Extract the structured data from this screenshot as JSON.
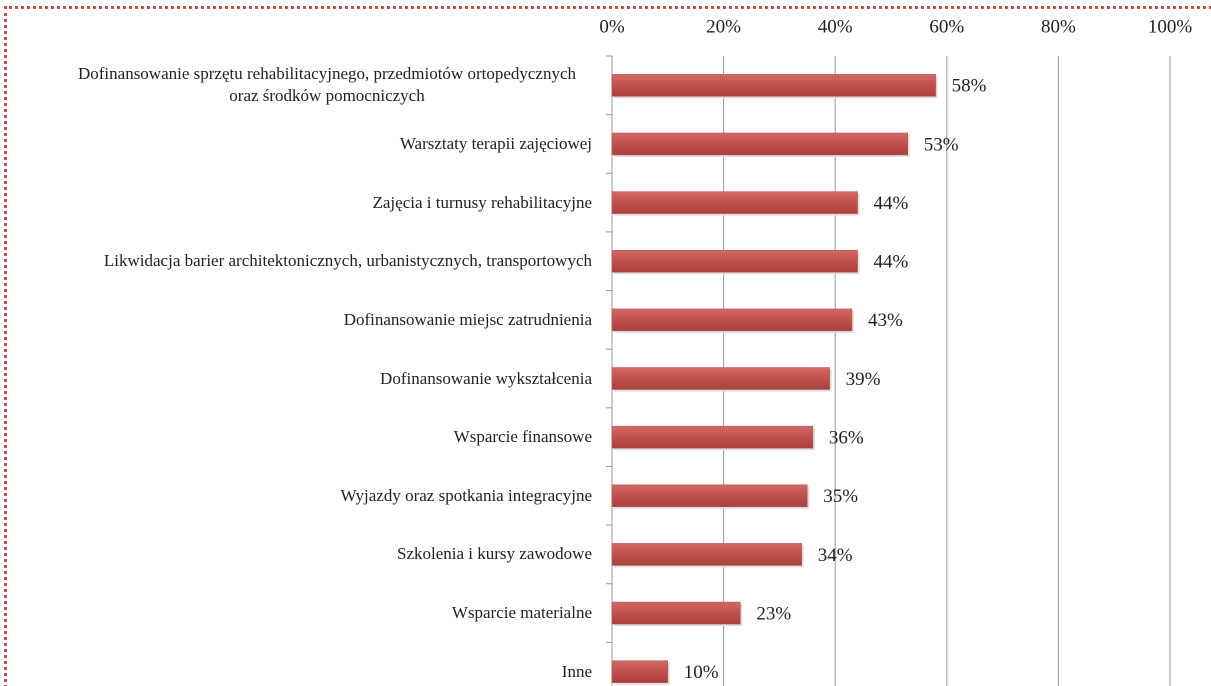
{
  "chart_data": {
    "type": "bar",
    "orientation": "horizontal",
    "categories": [
      "Dofinansowanie sprzętu rehabilitacyjnego, przedmiotów ortopedycznych oraz środków pomocniczych",
      "Warsztaty terapii zajęciowej",
      "Zajęcia i turnusy rehabilitacyjne",
      "Likwidacja barier architektonicznych, urbanistycznych, transportowych",
      "Dofinansowanie miejsc zatrudnienia",
      "Dofinansowanie wykształcenia",
      "Wsparcie finansowe",
      "Wyjazdy oraz spotkania integracyjne",
      "Szkolenia i kursy zawodowe",
      "Wsparcie materialne",
      "Inne"
    ],
    "values": [
      58,
      53,
      44,
      44,
      43,
      39,
      36,
      35,
      34,
      23,
      10
    ],
    "value_labels": [
      "58%",
      "53%",
      "44%",
      "44%",
      "43%",
      "39%",
      "36%",
      "35%",
      "34%",
      "23%",
      "10%"
    ],
    "color": "#c0504d",
    "xlim": [
      0,
      100
    ],
    "xticks": [
      {
        "value": 0,
        "label": "0%"
      },
      {
        "value": 20,
        "label": "20%"
      },
      {
        "value": 40,
        "label": "40%"
      },
      {
        "value": 60,
        "label": "60%"
      },
      {
        "value": 80,
        "label": "80%"
      },
      {
        "value": 100,
        "label": "100%"
      }
    ],
    "grid": true
  }
}
